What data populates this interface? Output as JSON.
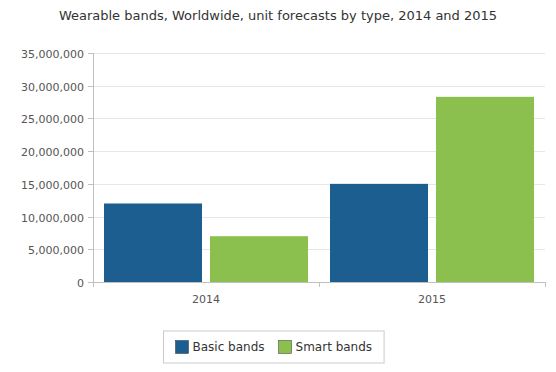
{
  "chart_data": {
    "type": "bar",
    "title": "Wearable bands, Worldwide, unit forecasts by type, 2014 and 2015",
    "categories": [
      "2014",
      "2015"
    ],
    "series": [
      {
        "name": "Basic bands",
        "color": "#1b5e8f",
        "values": [
          12000000,
          15000000
        ]
      },
      {
        "name": "Smart bands",
        "color": "#8bc04f",
        "values": [
          7000000,
          28300000
        ]
      }
    ],
    "ylim": [
      0,
      35000000
    ],
    "yticks": [
      0,
      {
        "value": 5000000,
        "label": "5,000,000"
      },
      {
        "value": 10000000,
        "label": "10,000,000"
      },
      {
        "value": 15000000,
        "label": "15,000,000"
      },
      {
        "value": 20000000,
        "label": "20,000,000"
      },
      {
        "value": 25000000,
        "label": "25,000,000"
      },
      {
        "value": 30000000,
        "label": "30,000,000"
      },
      {
        "value": 35000000,
        "label": "35,000,000"
      }
    ],
    "grid": true,
    "legend": "bottom"
  }
}
